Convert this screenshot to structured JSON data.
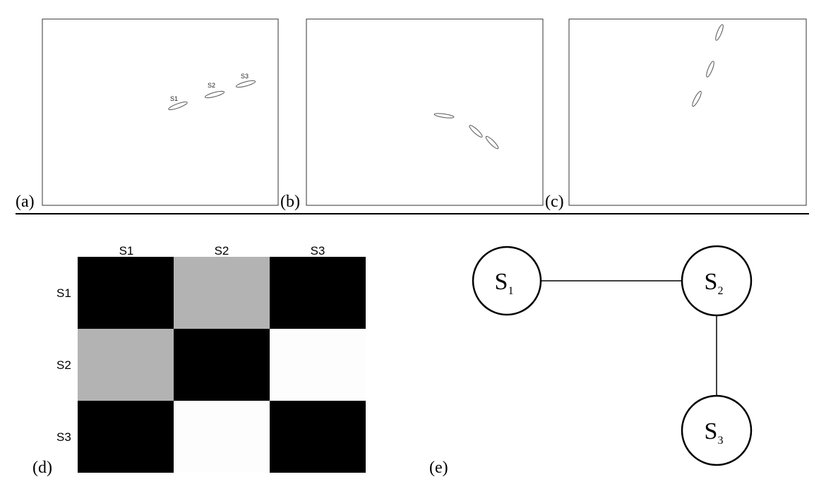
{
  "panels_top": [
    {
      "label": "(a)",
      "ellipses": [
        {
          "name": "S1",
          "label": "S1"
        },
        {
          "name": "S2",
          "label": "S2"
        },
        {
          "name": "S3",
          "label": "S3"
        }
      ]
    },
    {
      "label": "(b)",
      "ellipses": [
        {
          "name": "b1",
          "label": ""
        },
        {
          "name": "b2",
          "label": ""
        },
        {
          "name": "b3",
          "label": ""
        }
      ]
    },
    {
      "label": "(c)",
      "ellipses": [
        {
          "name": "c1",
          "label": ""
        },
        {
          "name": "c2",
          "label": ""
        },
        {
          "name": "c3",
          "label": ""
        }
      ]
    }
  ],
  "matrix": {
    "label": "(d)",
    "col_labels": [
      "S1",
      "S2",
      "S3"
    ],
    "row_labels": [
      "S1",
      "S2",
      "S3"
    ],
    "cells": [
      [
        "#000000",
        "#b3b3b3",
        "#000000"
      ],
      [
        "#b3b3b3",
        "#000000",
        "#fdfdfd"
      ],
      [
        "#000000",
        "#fdfdfd",
        "#000000"
      ]
    ]
  },
  "graph": {
    "label": "(e)",
    "nodes": [
      {
        "id": "S1",
        "base": "S",
        "sub": "1"
      },
      {
        "id": "S2",
        "base": "S",
        "sub": "2"
      },
      {
        "id": "S3",
        "base": "S",
        "sub": "3"
      }
    ],
    "edges": [
      [
        "S1",
        "S2"
      ],
      [
        "S2",
        "S3"
      ]
    ]
  }
}
